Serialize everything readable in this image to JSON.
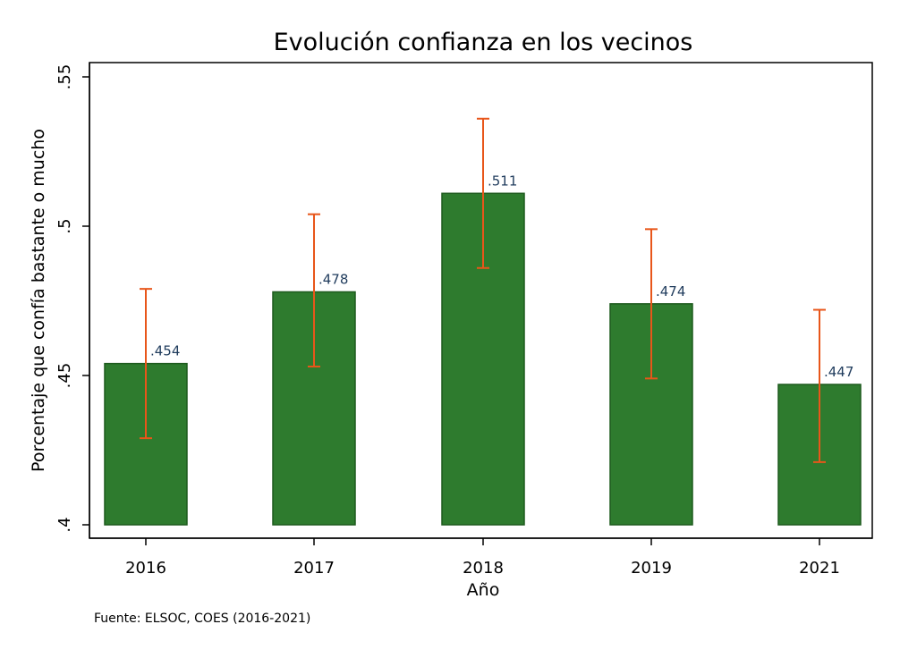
{
  "chart_data": {
    "type": "bar",
    "title": "Evolución confianza en los vecinos",
    "xlabel": "Año",
    "ylabel": "Porcentaje que confía bastante o mucho",
    "categories": [
      "2016",
      "2017",
      "2018",
      "2019",
      "2021"
    ],
    "values": [
      0.454,
      0.478,
      0.511,
      0.474,
      0.447
    ],
    "value_labels": [
      ".454",
      ".478",
      ".511",
      ".474",
      ".447"
    ],
    "ci_lower": [
      0.429,
      0.453,
      0.486,
      0.449,
      0.421
    ],
    "ci_upper": [
      0.479,
      0.504,
      0.536,
      0.499,
      0.472
    ],
    "ylim": [
      0.4,
      0.55
    ],
    "yticks": [
      0.4,
      0.45,
      0.5,
      0.55
    ],
    "ytick_labels": [
      ".4",
      ".45",
      ".5",
      ".55"
    ],
    "grid": false,
    "legend": "none",
    "colors": {
      "bar": "#2e7b2e",
      "bar_edge": "#1d5a1d",
      "error_bar": "#e8561a"
    }
  },
  "source_note": "Fuente: ELSOC, COES (2016-2021)"
}
